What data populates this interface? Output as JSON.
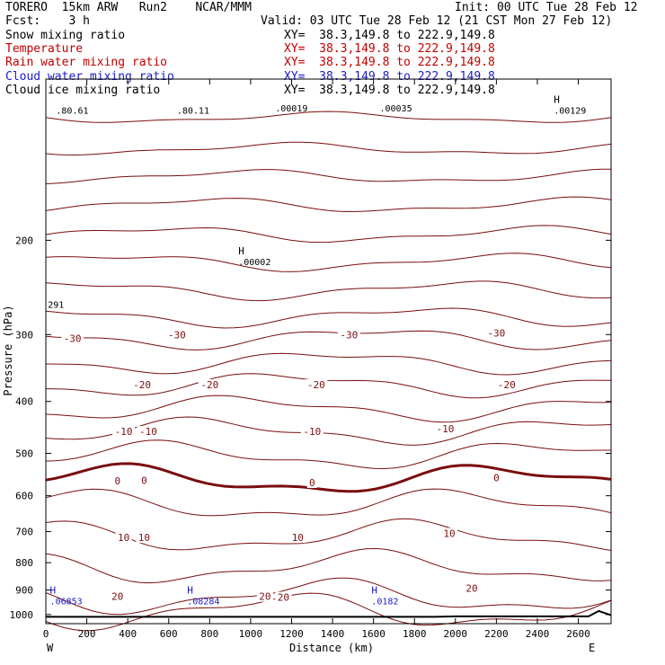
{
  "header": {
    "model_line": "TORERO  15km ARW   Run2    NCAR/MMM",
    "init": "Init: 00 UTC Tue 28 Feb 12",
    "fcst": "Fcst:    3 h",
    "valid": "Valid: 03 UTC Tue 28 Feb 12 (21 CST Mon 27 Feb 12)"
  },
  "fields": [
    {
      "name": "Snow mixing ratio",
      "xy": "XY=  38.3,149.8 to 222.9,149.8",
      "color": "#000000"
    },
    {
      "name": "Temperature",
      "xy": "XY=  38.3,149.8 to 222.9,149.8",
      "color": "#c00000"
    },
    {
      "name": "Rain water mixing ratio",
      "xy": "XY=  38.3,149.8 to 222.9,149.8",
      "color": "#c00000"
    },
    {
      "name": "Cloud water mixing ratio",
      "xy": "XY=  38.3,149.8 to 222.9,149.8",
      "color": "#1a1acc"
    },
    {
      "name": "Cloud ice mixing ratio",
      "xy": "XY=  38.3,149.8 to 222.9,149.8",
      "color": "#000000"
    }
  ],
  "chart_data": {
    "type": "line",
    "xlabel": "Distance (km)",
    "ylabel": "Pressure (hPa)",
    "xlim": [
      0,
      2760
    ],
    "ylim": [
      100,
      1040
    ],
    "y_scale": "log",
    "y_inverted": true,
    "x_ticks": [
      0,
      200,
      400,
      600,
      800,
      1000,
      1200,
      1400,
      1600,
      1800,
      2000,
      2200,
      2400,
      2600
    ],
    "y_ticks": [
      200,
      300,
      400,
      500,
      600,
      700,
      800,
      900,
      1000
    ],
    "x_end_labels": {
      "left": "W",
      "right": "E"
    },
    "grid": false,
    "colors": {
      "temperature": "#7a0d0d",
      "zero_isotherm": "#7a0d0d",
      "cloud_water": "#1a1acc",
      "terrain": "#000000",
      "cloud_ice": "#000000"
    },
    "temperature_isotherms": [
      {
        "pressure": 118,
        "label": null
      },
      {
        "pressure": 135,
        "label": null
      },
      {
        "pressure": 152,
        "label": null
      },
      {
        "pressure": 172,
        "label": null
      },
      {
        "pressure": 195,
        "label": null
      },
      {
        "pressure": 220,
        "label": null
      },
      {
        "pressure": 248,
        "label": null
      },
      {
        "pressure": 278,
        "label": null
      },
      {
        "pressure": 305,
        "label": "-30"
      },
      {
        "pressure": 338,
        "label": null
      },
      {
        "pressure": 372,
        "label": "-20"
      },
      {
        "pressure": 412,
        "label": null
      },
      {
        "pressure": 455,
        "label": "-10"
      },
      {
        "pressure": 505,
        "label": null
      },
      {
        "pressure": 560,
        "label": "0"
      },
      {
        "pressure": 625,
        "label": null
      },
      {
        "pressure": 715,
        "label": "10"
      },
      {
        "pressure": 815,
        "label": null
      },
      {
        "pressure": 925,
        "label": "20"
      },
      {
        "pressure": 985,
        "label": null
      }
    ],
    "isotherm_labels": [
      {
        "x": 130,
        "p": 305,
        "text": "-30"
      },
      {
        "x": 640,
        "p": 300,
        "text": "-30"
      },
      {
        "x": 1480,
        "p": 300,
        "text": "-30"
      },
      {
        "x": 2200,
        "p": 298,
        "text": "-30"
      },
      {
        "x": 470,
        "p": 372,
        "text": "-20"
      },
      {
        "x": 800,
        "p": 372,
        "text": "-20"
      },
      {
        "x": 1320,
        "p": 372,
        "text": "-20"
      },
      {
        "x": 2250,
        "p": 372,
        "text": "-20"
      },
      {
        "x": 380,
        "p": 455,
        "text": "-10"
      },
      {
        "x": 500,
        "p": 455,
        "text": "-10"
      },
      {
        "x": 1300,
        "p": 455,
        "text": "-10"
      },
      {
        "x": 1950,
        "p": 450,
        "text": "-10"
      },
      {
        "x": 350,
        "p": 563,
        "text": "0"
      },
      {
        "x": 480,
        "p": 562,
        "text": "0"
      },
      {
        "x": 1300,
        "p": 567,
        "text": "0"
      },
      {
        "x": 2200,
        "p": 555,
        "text": "0"
      },
      {
        "x": 380,
        "p": 718,
        "text": "10"
      },
      {
        "x": 480,
        "p": 718,
        "text": "10"
      },
      {
        "x": 1230,
        "p": 718,
        "text": "10"
      },
      {
        "x": 1970,
        "p": 705,
        "text": "10"
      },
      {
        "x": 350,
        "p": 925,
        "text": "20"
      },
      {
        "x": 1070,
        "p": 925,
        "text": "20"
      },
      {
        "x": 1160,
        "p": 928,
        "text": "20"
      },
      {
        "x": 2080,
        "p": 893,
        "text": "20"
      }
    ],
    "cloud_water_maxima": [
      {
        "x": 20,
        "p": 925,
        "marker": "H",
        "value": ".06853"
      },
      {
        "x": 690,
        "p": 925,
        "marker": "H",
        "value": ".08284"
      },
      {
        "x": 1590,
        "p": 925,
        "marker": "H",
        "value": ".0182"
      }
    ],
    "cloud_ice_maxima": [
      {
        "x": 940,
        "p": 215,
        "marker": "H",
        "value": ".00002"
      },
      {
        "x": 2480,
        "p": 112,
        "marker": "H",
        "value": ".00129"
      },
      {
        "x": 50,
        "p": 112,
        "marker": null,
        "value": ".80.61"
      },
      {
        "x": 640,
        "p": 112,
        "marker": null,
        "value": ".80.11"
      },
      {
        "x": 1120,
        "p": 111,
        "marker": null,
        "value": ".00019"
      },
      {
        "x": 1630,
        "p": 111,
        "marker": null,
        "value": ".00035"
      },
      {
        "x": 10,
        "p": 258,
        "marker": null,
        "value": "291"
      }
    ],
    "terrain": [
      [
        0,
        1010
      ],
      [
        1900,
        1010
      ],
      [
        2000,
        1008
      ],
      [
        2650,
        1008
      ],
      [
        2700,
        985
      ],
      [
        2760,
        1003
      ]
    ]
  }
}
